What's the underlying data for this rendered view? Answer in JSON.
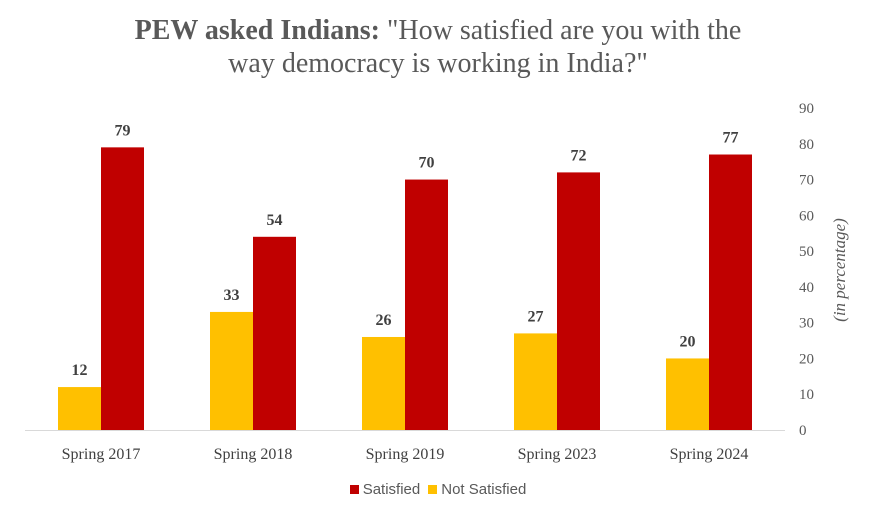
{
  "chart_data": {
    "type": "bar",
    "title_lead": "PEW asked Indians:",
    "title_rest_line1": " \"How satisfied are you with the",
    "title_rest_line2": "way democracy  is working in India?\"",
    "categories": [
      "Spring 2017",
      "Spring 2018",
      "Spring 2019",
      "Spring 2023",
      "Spring 2024"
    ],
    "series": [
      {
        "name": "Not Satisfied",
        "values": [
          12,
          33,
          26,
          27,
          20
        ],
        "color": "#FFC000"
      },
      {
        "name": "Satisfied",
        "values": [
          79,
          54,
          70,
          72,
          77
        ],
        "color": "#C00000"
      }
    ],
    "legend_order": [
      "Satisfied",
      "Not Satisfied"
    ],
    "ylabel": "(in percentage)",
    "ylim": [
      0,
      90
    ],
    "yticks": [
      0,
      10,
      20,
      30,
      40,
      50,
      60,
      70,
      80,
      90
    ],
    "y_axis_side": "right",
    "grid": false,
    "legend_position": "bottom"
  }
}
